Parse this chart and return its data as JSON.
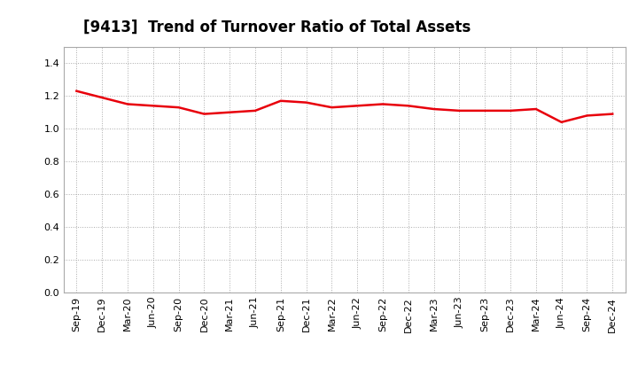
{
  "title": "[9413]  Trend of Turnover Ratio of Total Assets",
  "x_labels": [
    "Sep-19",
    "Dec-19",
    "Mar-20",
    "Jun-20",
    "Sep-20",
    "Dec-20",
    "Mar-21",
    "Jun-21",
    "Sep-21",
    "Dec-21",
    "Mar-22",
    "Jun-22",
    "Sep-22",
    "Dec-22",
    "Mar-23",
    "Jun-23",
    "Sep-23",
    "Dec-23",
    "Mar-24",
    "Jun-24",
    "Sep-24",
    "Dec-24"
  ],
  "y_values": [
    1.23,
    1.19,
    1.15,
    1.14,
    1.13,
    1.09,
    1.1,
    1.11,
    1.17,
    1.16,
    1.13,
    1.14,
    1.15,
    1.14,
    1.12,
    1.11,
    1.11,
    1.11,
    1.12,
    1.04,
    1.08,
    1.09
  ],
  "line_color": "#e8000b",
  "ylim": [
    0.0,
    1.5
  ],
  "yticks": [
    0.0,
    0.2,
    0.4,
    0.6,
    0.8,
    1.0,
    1.2,
    1.4
  ],
  "grid_color": "#aaaaaa",
  "background_color": "#ffffff",
  "plot_bg_color": "#ffffff",
  "title_fontsize": 12,
  "tick_fontsize": 8,
  "line_width": 1.8
}
